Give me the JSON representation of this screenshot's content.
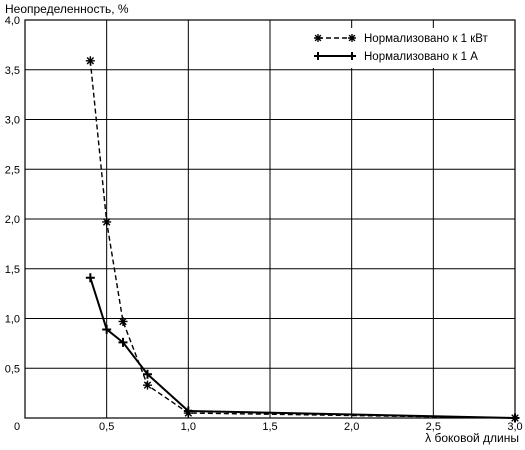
{
  "chart_data": {
    "type": "line",
    "title": "",
    "xlabel": "λ боковой длины",
    "ylabel": "Неопределенность, %",
    "xlim": [
      0,
      3.0
    ],
    "ylim": [
      0,
      4.0
    ],
    "x_ticks": [
      0.5,
      1.0,
      1.5,
      2.0,
      2.5,
      3.0
    ],
    "x_tick_labels": [
      "0,5",
      "1,0",
      "1,5",
      "2,0",
      "2,5",
      "3,0"
    ],
    "y_ticks": [
      0.5,
      1.0,
      1.5,
      2.0,
      2.5,
      3.0,
      3.5,
      4.0
    ],
    "y_tick_labels": [
      "0,5",
      "1,0",
      "1,5",
      "2,0",
      "2,5",
      "3,0",
      "3,5",
      "4,0"
    ],
    "origin_label": "0",
    "grid": true,
    "legend_position": "top-right",
    "series": [
      {
        "name": "Нормализовано к 1 кВт",
        "marker": "asterisk",
        "line_style": "dashed",
        "x": [
          0.4,
          0.5,
          0.6,
          0.75,
          1.0,
          3.0
        ],
        "y": [
          3.59,
          1.97,
          0.97,
          0.33,
          0.05,
          0.0
        ]
      },
      {
        "name": "Нормализовано к 1 А",
        "marker": "plus",
        "line_style": "solid",
        "x": [
          0.4,
          0.5,
          0.6,
          0.75,
          1.0,
          3.0
        ],
        "y": [
          1.41,
          0.89,
          0.76,
          0.44,
          0.07,
          0.0
        ]
      }
    ]
  }
}
